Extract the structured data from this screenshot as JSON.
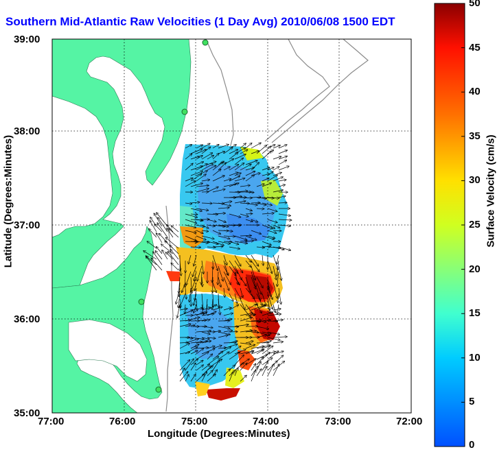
{
  "title": "Southern Mid-Atlantic Raw Velocities (1 Day Avg) 2010/06/08 1500 EDT",
  "map": {
    "x_label": "Longitude (Degrees:Minutes)",
    "y_label": "Latitude (Degrees:Minutes)",
    "x_ticks": [
      "77:00",
      "76:00",
      "75:00",
      "74:00",
      "73:00",
      "72:00"
    ],
    "y_ticks": [
      "39:00",
      "38:00",
      "37:00",
      "36:00",
      "35:00"
    ],
    "land_color": "#55f4a4",
    "grid": "dotted",
    "icon": "hf-radar-station-marker"
  },
  "colorbar": {
    "label": "Surface Velocity (cm/s)",
    "range": [
      0,
      50
    ],
    "ticks": [
      "0",
      "5",
      "10",
      "15",
      "20",
      "25",
      "30",
      "35",
      "40",
      "45",
      "50"
    ],
    "colormap": "jet"
  }
}
